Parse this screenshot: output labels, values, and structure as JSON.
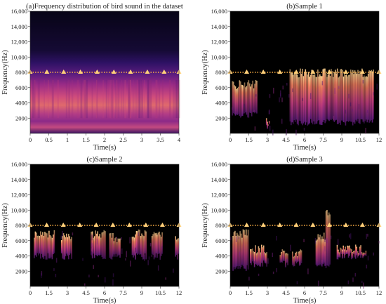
{
  "figure": {
    "colors": {
      "background": "#000000",
      "marker": "#ffd07a",
      "dotted_line": "#ffb347",
      "spectrogram_palette": [
        "#000004",
        "#2a0a52",
        "#6a1d7a",
        "#c33d80",
        "#f07c5e",
        "#fbd48f"
      ]
    }
  },
  "chart_data": [
    {
      "type": "heatmap",
      "title": "(a)Frequency distribution of bird sound in the dataset",
      "xlabel": "Time(s)",
      "ylabel": "Frequency(Hz)",
      "xlim": [
        0,
        4
      ],
      "ylim": [
        0,
        16000
      ],
      "xticks": [
        "0",
        "0.5",
        "1",
        "1.5",
        "2",
        "2.5",
        "3",
        "3.5",
        "4"
      ],
      "yticks": [
        "2000",
        "4000",
        "6000",
        "8000",
        "10,000",
        "12,000",
        "14,000",
        "16,000"
      ],
      "reference_line_hz": 8000,
      "marker_times": [
        0,
        0.45,
        0.9,
        1.35,
        1.8,
        2.25,
        2.7,
        3.15,
        3.6,
        4.0
      ]
    },
    {
      "type": "heatmap",
      "title": "(b)Sample 1",
      "xlabel": "Time(s)",
      "ylabel": "Frequency(Hz)",
      "xlim": [
        0,
        12
      ],
      "ylim": [
        0,
        16000
      ],
      "xticks": [
        "0",
        "1.5",
        "3",
        "4.5",
        "6",
        "7.5",
        "9",
        "10.5",
        "12"
      ],
      "yticks": [
        "2000",
        "4000",
        "6000",
        "8000",
        "10,000",
        "12,000",
        "14,000",
        "16,000"
      ],
      "reference_line_hz": 8000,
      "marker_times": [
        0,
        1.33,
        2.67,
        4.0,
        5.33,
        6.67,
        8.0,
        9.33,
        10.67,
        12.0
      ]
    },
    {
      "type": "heatmap",
      "title": "(c)Sample 2",
      "xlabel": "Time(s)",
      "ylabel": "Frequency(Hz)",
      "xlim": [
        0,
        12
      ],
      "ylim": [
        0,
        16000
      ],
      "xticks": [
        "0",
        "1.5",
        "3",
        "4.5",
        "6",
        "7.5",
        "9",
        "10.5",
        "12"
      ],
      "yticks": [
        "2000",
        "4000",
        "6000",
        "8000",
        "10,000",
        "12,000",
        "14,000",
        "16,000"
      ],
      "reference_line_hz": 8000,
      "marker_times": [
        0,
        1.33,
        2.67,
        4.0,
        5.33,
        6.67,
        8.0,
        9.33,
        10.67,
        12.0
      ]
    },
    {
      "type": "heatmap",
      "title": "(d)Sample 3",
      "xlabel": "Time(s)",
      "ylabel": "Frequency(Hz)",
      "xlim": [
        0,
        12
      ],
      "ylim": [
        0,
        16000
      ],
      "xticks": [
        "0",
        "1.5",
        "3",
        "4.5",
        "6",
        "7.5",
        "9",
        "10.5",
        "12"
      ],
      "yticks": [
        "2000",
        "4000",
        "6000",
        "8000",
        "10,000",
        "12,000",
        "14,000",
        "16,000"
      ],
      "reference_line_hz": 8000,
      "marker_times": [
        0,
        1.33,
        2.67,
        4.0,
        5.33,
        6.67,
        8.0,
        9.33,
        10.67,
        12.0
      ]
    }
  ]
}
